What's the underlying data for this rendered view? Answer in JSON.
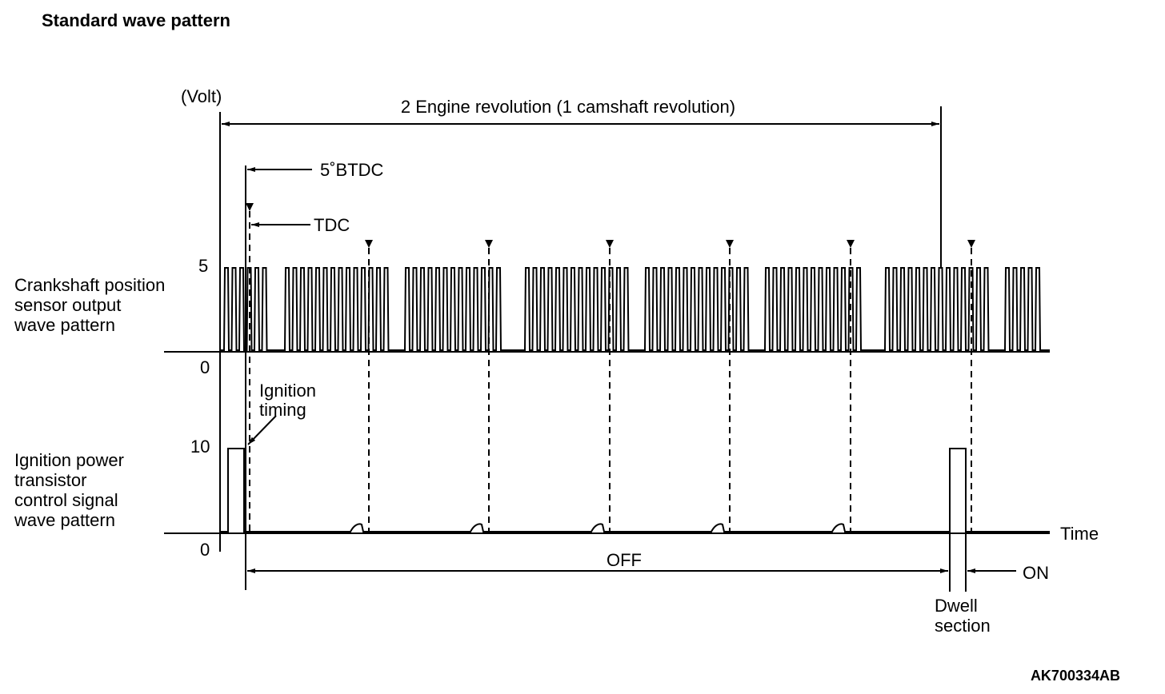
{
  "title": "Standard wave pattern",
  "unit": "(Volt)",
  "span_label": "2 Engine revolution (1 camshaft revolution)",
  "btdc_label": "5˚BTDC",
  "tdc_label": "TDC",
  "crank": {
    "label": [
      "Crankshaft position",
      "sensor output",
      "wave pattern"
    ],
    "y_high": "5",
    "y_low": "0"
  },
  "ignition": {
    "label": [
      "Ignition power",
      "transistor",
      "control signal",
      "wave pattern"
    ],
    "y_high": "10",
    "y_low": "0"
  },
  "ignition_timing": [
    "Ignition",
    "timing"
  ],
  "time_label": "Time",
  "off_label": "OFF",
  "on_label": "ON",
  "dwell": [
    "Dwell",
    "section"
  ],
  "code": "AK700334AB"
}
